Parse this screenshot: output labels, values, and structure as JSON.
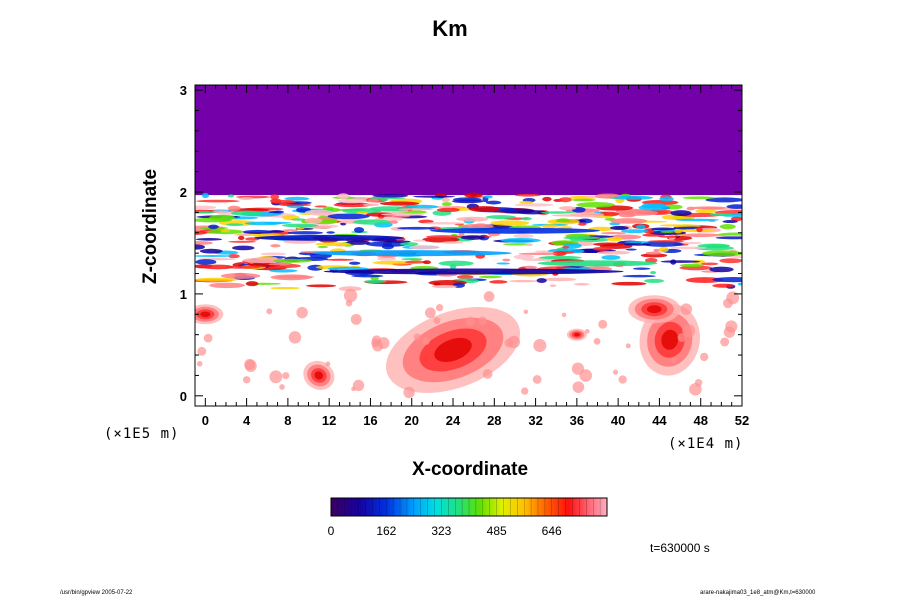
{
  "chart_data": {
    "type": "heatmap",
    "title": "Km",
    "xlabel": "X-coordinate",
    "ylabel": "Z-coordinate",
    "x_unit": "(×1E4 m)",
    "y_unit": "(×1E5 m)",
    "xlim": [
      -1,
      52
    ],
    "ylim": [
      -0.1,
      3.05
    ],
    "x_ticks": [
      0,
      4,
      8,
      12,
      16,
      20,
      24,
      28,
      32,
      36,
      40,
      44,
      48,
      52
    ],
    "y_ticks": [
      0,
      1,
      2,
      3
    ],
    "colorbar": {
      "range": [
        0,
        808
      ],
      "tick_values": [
        0,
        162,
        323,
        485,
        646
      ],
      "tick_labels": [
        "0",
        "162",
        "323",
        "485",
        "646"
      ]
    },
    "upper_region": {
      "z_min": 1.97,
      "value": 0
    },
    "time_label": "t=630000 s"
  },
  "footer": {
    "left": "/usr/bin/gpview 2005-07-22",
    "right": "arare-nakajima03_1e8_atm@Km,t=630000"
  },
  "colors": {
    "upper_fill": "#7300a8",
    "background": "#ffffff"
  }
}
